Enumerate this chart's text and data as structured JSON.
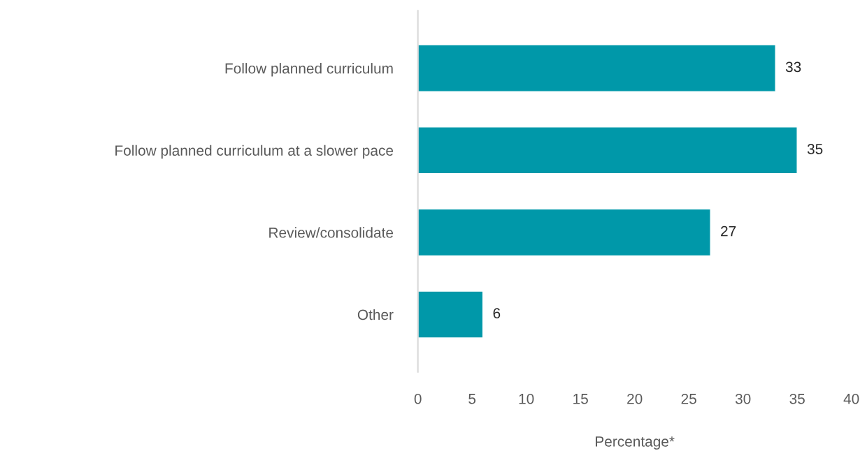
{
  "chart_data": {
    "type": "bar",
    "orientation": "horizontal",
    "xlabel": "Percentage*",
    "categories": [
      "Follow planned curriculum",
      "Follow planned curriculum at a slower pace",
      "Review/consolidate",
      "Other"
    ],
    "values": [
      33,
      35,
      27,
      6
    ],
    "color": "#0098a9",
    "xlim": [
      0,
      40
    ],
    "xticks": [
      0,
      5,
      10,
      15,
      20,
      25,
      30,
      35,
      40
    ],
    "grid": false,
    "data_labels": true
  }
}
